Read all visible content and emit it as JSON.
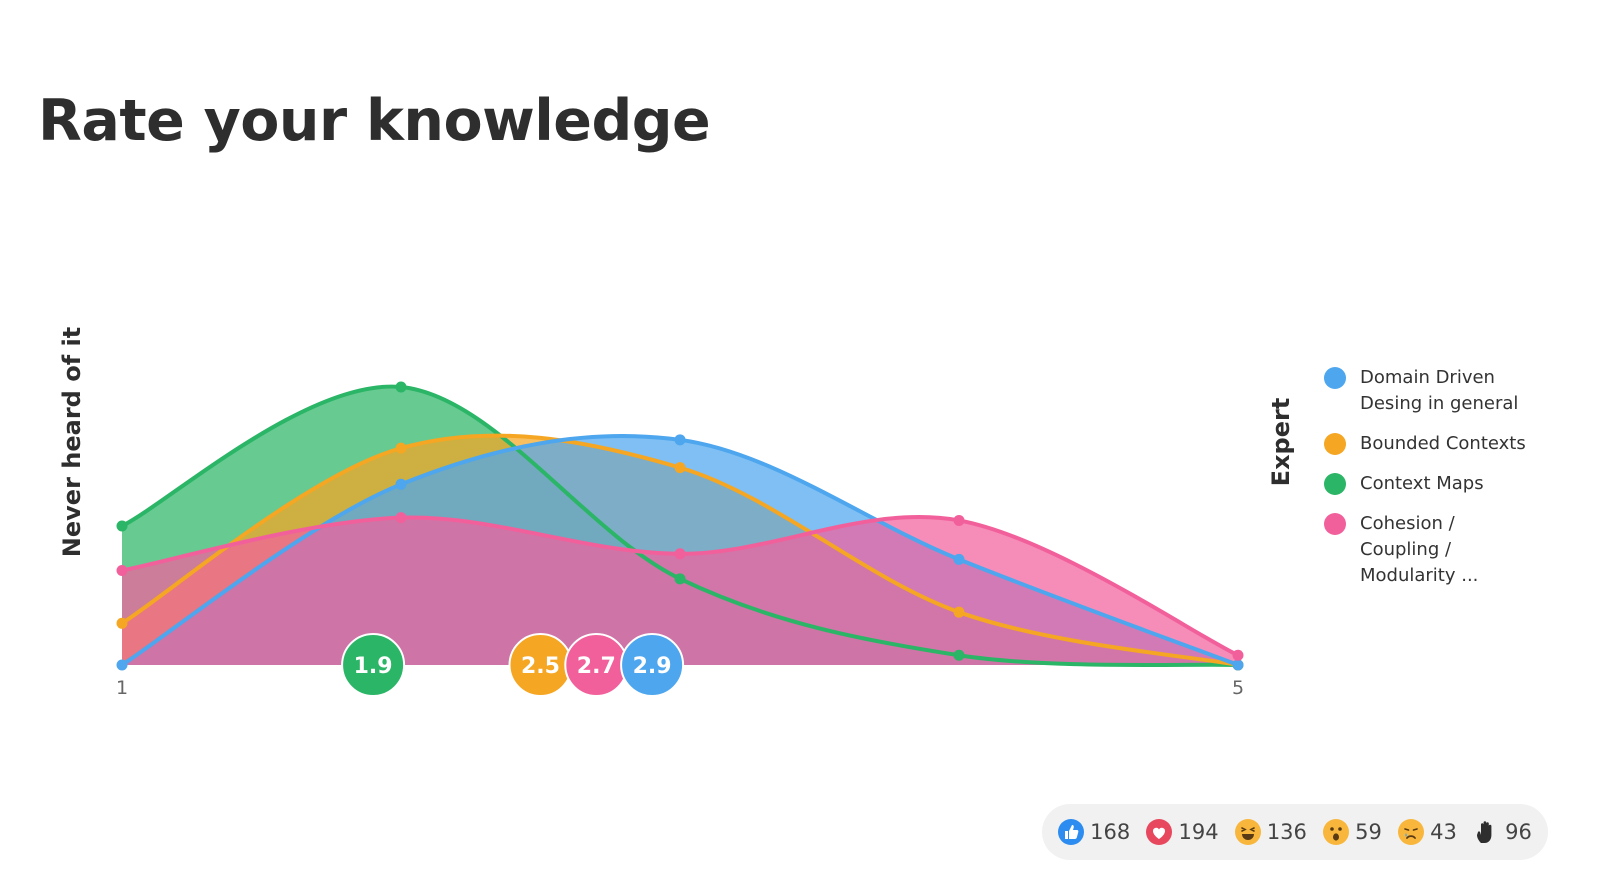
{
  "title": "Rate your knowledge",
  "axis": {
    "left_label": "Never heard of it",
    "right_label": "Expert"
  },
  "chart_data": {
    "type": "area",
    "x": [
      1,
      2,
      3,
      4,
      5
    ],
    "tick_labels": [
      "1",
      "5"
    ],
    "series": [
      {
        "name": "Domain Driven Desing in general",
        "color": "#4da6ee",
        "values": [
          0,
          0.65,
          0.81,
          0.38,
          0
        ],
        "mean": "2.9"
      },
      {
        "name": "Bounded Contexts",
        "color": "#f5a623",
        "values": [
          0.15,
          0.78,
          0.71,
          0.19,
          0
        ],
        "mean": "2.5"
      },
      {
        "name": "Context Maps",
        "color": "#2bb566",
        "values": [
          0.5,
          1.0,
          0.31,
          0.035,
          0
        ],
        "mean": "1.9"
      },
      {
        "name": "Cohesion / Coupling / Modularity ...",
        "color": "#f2609c",
        "values": [
          0.34,
          0.53,
          0.4,
          0.52,
          0.035
        ],
        "mean": "2.7"
      }
    ],
    "ylim": [
      0,
      1
    ]
  },
  "legend": [
    {
      "lines": [
        "Domain Driven",
        "Desing in general"
      ],
      "color": "#4da6ee"
    },
    {
      "lines": [
        "Bounded Contexts"
      ],
      "color": "#f5a623"
    },
    {
      "lines": [
        "Context Maps"
      ],
      "color": "#2bb566"
    },
    {
      "lines": [
        "Cohesion /",
        "Coupling /",
        "Modularity ..."
      ],
      "color": "#f2609c"
    }
  ],
  "reactions": [
    {
      "icon": "thumbs-up-icon",
      "count": "168"
    },
    {
      "icon": "heart-icon",
      "count": "194"
    },
    {
      "icon": "laughing-face-icon",
      "count": "136"
    },
    {
      "icon": "surprised-face-icon",
      "count": "59"
    },
    {
      "icon": "sad-face-icon",
      "count": "43"
    },
    {
      "icon": "raised-hand-icon",
      "count": "96"
    }
  ]
}
